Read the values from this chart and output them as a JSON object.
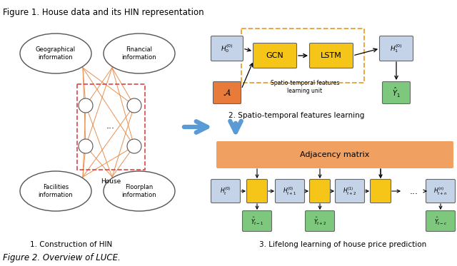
{
  "title_top": "Figure 1. House data and its HIN representation",
  "title_bottom": "Figure 2. Overview of LUCE.",
  "label1": "1. Construction of HIN",
  "label3": "3. Lifelong learning of house price prediction",
  "gcn_color": "#F5C518",
  "lstm_color": "#F5C518",
  "adjacency_color": "#F0A060",
  "blue_box_color": "#C5D3E8",
  "green_box_color": "#7DC87D",
  "orange_box_color": "#E87A3A",
  "node_color": "#F5C518",
  "orange_line_color": "#E89050",
  "arrow_blue": "#5B9BD5",
  "dashed_rect_color": "#DD4444",
  "spatio_border_color": "#E8A030"
}
